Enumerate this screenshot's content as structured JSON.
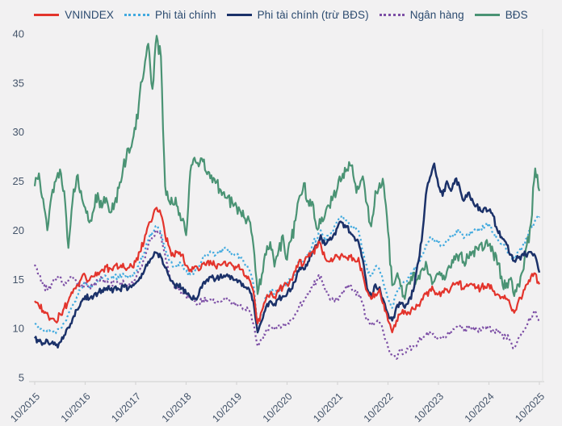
{
  "chart_data": {
    "type": "line",
    "title": "",
    "xlabel": "",
    "ylabel": "",
    "ylim": [
      5,
      40
    ],
    "yticks": [
      40,
      35,
      30,
      25,
      20,
      15,
      10,
      5
    ],
    "xticks": [
      "10/2015",
      "10/2016",
      "10/2017",
      "10/2018",
      "10/2019",
      "10/2020",
      "10/2021",
      "10/2022",
      "10/2023",
      "10/2024",
      "10/2025"
    ],
    "grid": false,
    "legend_position": "top",
    "x": {
      "start": "2015-10",
      "step": "1 month",
      "count": 121
    },
    "series": [
      {
        "name": "VNINDEX",
        "slug": "vnindex",
        "color": "#e3342c",
        "style": "solid",
        "values": [
          12.8,
          12.3,
          11.8,
          11.6,
          11.0,
          10.7,
          11.5,
          12.1,
          12.8,
          13.6,
          14.4,
          15.0,
          15.4,
          14.9,
          15.3,
          15.7,
          16.0,
          16.3,
          16.1,
          16.4,
          16.2,
          16.6,
          16.1,
          16.4,
          16.8,
          17.8,
          18.8,
          20.5,
          21.2,
          22.3,
          21.6,
          19.5,
          18.3,
          17.4,
          17.8,
          17.5,
          16.4,
          16.0,
          16.3,
          15.9,
          16.6,
          16.8,
          16.6,
          16.3,
          16.5,
          16.8,
          16.6,
          16.4,
          16.2,
          16.0,
          15.3,
          15.0,
          13.8,
          10.5,
          11.8,
          13.0,
          13.5,
          13.2,
          13.8,
          14.2,
          14.5,
          15.0,
          15.8,
          17.0,
          16.6,
          17.3,
          17.8,
          18.2,
          18.6,
          17.2,
          16.8,
          17.0,
          17.3,
          17.6,
          17.2,
          17.3,
          17.0,
          17.2,
          15.5,
          13.8,
          13.0,
          13.5,
          14.0,
          12.5,
          10.8,
          9.6,
          10.8,
          11.5,
          11.8,
          11.6,
          12.0,
          12.3,
          13.0,
          13.5,
          14.0,
          13.8,
          13.5,
          13.8,
          14.0,
          14.2,
          14.5,
          14.8,
          14.0,
          14.3,
          14.5,
          14.2,
          14.0,
          14.3,
          14.5,
          13.8,
          13.5,
          13.2,
          13.0,
          12.5,
          11.6,
          12.8,
          13.4,
          14.5,
          15.3,
          15.6,
          14.5
        ]
      },
      {
        "name": "Phi tài chính",
        "slug": "phi-tai-chinh",
        "color": "#41aadf",
        "style": "dotted",
        "values": [
          10.5,
          10.2,
          9.9,
          9.8,
          9.6,
          9.5,
          9.9,
          10.6,
          11.4,
          12.3,
          13.2,
          14.0,
          14.6,
          14.2,
          14.5,
          14.8,
          15.1,
          15.3,
          15.1,
          15.4,
          15.2,
          15.6,
          15.1,
          15.4,
          15.8,
          16.8,
          17.6,
          19.0,
          19.8,
          20.5,
          19.8,
          18.0,
          16.9,
          16.2,
          16.6,
          16.4,
          15.8,
          15.5,
          15.8,
          16.2,
          17.2,
          17.6,
          17.8,
          17.5,
          17.8,
          18.1,
          17.9,
          17.7,
          17.5,
          17.2,
          16.5,
          16.0,
          14.5,
          10.4,
          11.8,
          13.2,
          13.8,
          13.5,
          14.0,
          14.3,
          14.5,
          15.0,
          15.8,
          17.0,
          16.8,
          17.5,
          18.5,
          19.2,
          20.0,
          19.0,
          19.5,
          20.0,
          20.8,
          21.5,
          21.0,
          20.5,
          20.2,
          20.0,
          17.8,
          16.1,
          15.3,
          16.3,
          16.0,
          14.5,
          13.0,
          12.1,
          13.5,
          14.4,
          14.8,
          15.2,
          15.8,
          16.5,
          17.4,
          18.5,
          19.3,
          19.0,
          18.8,
          18.5,
          19.0,
          19.3,
          19.6,
          20.0,
          19.2,
          19.5,
          19.8,
          20.2,
          20.0,
          20.4,
          20.7,
          19.8,
          19.2,
          18.6,
          18.2,
          17.5,
          17.1,
          17.8,
          18.4,
          19.2,
          20.2,
          21.0,
          21.4
        ]
      },
      {
        "name": "Phi tài chính (trừ BĐS)",
        "slug": "phi-tai-chinh-tru-bds",
        "color": "#1b3169",
        "style": "solid",
        "values": [
          9.0,
          8.7,
          8.5,
          8.8,
          8.5,
          8.3,
          8.6,
          9.3,
          10.1,
          11.0,
          11.9,
          12.7,
          13.3,
          13.0,
          13.3,
          13.6,
          13.9,
          14.1,
          13.9,
          14.2,
          14.0,
          14.4,
          13.9,
          14.2,
          14.6,
          15.2,
          15.8,
          16.8,
          17.2,
          17.7,
          17.3,
          16.2,
          15.3,
          14.6,
          14.4,
          14.1,
          13.6,
          13.2,
          13.0,
          13.4,
          14.6,
          15.0,
          15.2,
          15.0,
          15.2,
          15.4,
          15.3,
          15.2,
          15.0,
          14.7,
          14.2,
          14.0,
          12.8,
          9.6,
          10.8,
          12.2,
          12.8,
          12.5,
          13.0,
          13.3,
          13.5,
          14.0,
          14.8,
          16.2,
          16.0,
          16.8,
          17.8,
          18.5,
          19.5,
          18.5,
          19.0,
          19.5,
          20.3,
          20.8,
          20.3,
          19.8,
          19.3,
          18.8,
          17.0,
          14.1,
          13.3,
          14.5,
          14.2,
          12.8,
          11.5,
          10.8,
          12.2,
          12.5,
          12.1,
          13.0,
          13.8,
          16.5,
          18.9,
          23.6,
          25.4,
          26.8,
          24.5,
          23.5,
          25.0,
          24.0,
          25.2,
          24.5,
          23.0,
          23.8,
          23.2,
          22.5,
          22.0,
          22.3,
          22.0,
          21.5,
          20.0,
          19.3,
          18.8,
          17.5,
          16.9,
          17.2,
          17.6,
          17.3,
          17.8,
          17.4,
          15.7
        ]
      },
      {
        "name": "Ngân hàng",
        "slug": "ngan-hang",
        "color": "#7d4fa6",
        "style": "dotted",
        "values": [
          16.5,
          15.6,
          14.4,
          14.0,
          14.5,
          15.0,
          15.3,
          14.4,
          14.9,
          15.3,
          14.6,
          14.3,
          14.6,
          14.1,
          14.4,
          14.8,
          15.1,
          14.7,
          14.4,
          14.8,
          14.5,
          14.9,
          14.3,
          14.6,
          15.0,
          16.0,
          17.0,
          18.5,
          19.3,
          20.0,
          19.4,
          17.5,
          15.5,
          14.5,
          14.0,
          13.8,
          13.3,
          13.0,
          12.8,
          12.6,
          13.0,
          12.8,
          12.9,
          12.6,
          12.8,
          13.0,
          12.8,
          12.7,
          12.6,
          12.4,
          12.0,
          11.8,
          10.5,
          8.2,
          9.0,
          9.8,
          10.2,
          10.0,
          10.3,
          10.4,
          10.5,
          10.8,
          11.5,
          12.5,
          12.8,
          13.5,
          14.2,
          14.8,
          15.4,
          14.0,
          13.2,
          12.8,
          13.0,
          13.5,
          14.2,
          14.4,
          13.8,
          13.5,
          12.5,
          10.8,
          10.4,
          10.6,
          10.6,
          9.5,
          8.1,
          7.3,
          6.9,
          7.8,
          7.5,
          8.0,
          8.2,
          8.5,
          9.0,
          9.3,
          9.6,
          9.2,
          8.9,
          9.0,
          9.3,
          9.6,
          10.0,
          10.3,
          9.8,
          10.0,
          10.2,
          9.9,
          9.7,
          10.0,
          10.1,
          9.8,
          9.6,
          9.4,
          9.2,
          8.8,
          8.0,
          9.0,
          9.5,
          10.2,
          11.2,
          11.8,
          10.6
        ]
      },
      {
        "name": "BĐS",
        "slug": "bds",
        "color": "#4a9374",
        "style": "solid",
        "values": [
          24.5,
          25.8,
          23.2,
          20.0,
          23.5,
          25.0,
          26.2,
          24.0,
          18.2,
          23.0,
          25.5,
          24.0,
          22.3,
          20.8,
          22.0,
          23.8,
          22.3,
          23.3,
          21.8,
          22.8,
          24.3,
          26.3,
          28.3,
          28.5,
          30.3,
          34.0,
          36.2,
          39.0,
          34.4,
          39.8,
          37.7,
          24.5,
          22.9,
          22.6,
          22.4,
          21.0,
          19.5,
          26.0,
          27.4,
          26.5,
          27.0,
          25.7,
          25.6,
          24.8,
          24.2,
          23.9,
          23.5,
          22.8,
          22.4,
          21.8,
          21.2,
          21.0,
          18.5,
          13.5,
          15.5,
          17.5,
          18.8,
          16.3,
          18.0,
          19.5,
          17.0,
          19.0,
          21.0,
          23.5,
          24.8,
          23.0,
          22.9,
          20.2,
          20.7,
          21.5,
          22.5,
          23.5,
          24.3,
          25.2,
          26.0,
          26.6,
          25.0,
          24.2,
          25.5,
          22.7,
          20.4,
          24.0,
          24.8,
          24.6,
          19.9,
          14.4,
          15.3,
          14.3,
          13.0,
          14.7,
          15.7,
          15.0,
          16.0,
          16.8,
          15.5,
          14.8,
          15.5,
          15.0,
          15.8,
          16.2,
          17.0,
          17.5,
          16.8,
          17.2,
          17.8,
          18.3,
          18.6,
          18.3,
          18.5,
          17.8,
          16.5,
          15.3,
          14.1,
          15.0,
          13.3,
          14.5,
          15.8,
          18.5,
          20.7,
          26.3,
          24.0
        ]
      }
    ],
    "colors": {
      "background": "#f2f1f2",
      "axis": "#d6d6d6",
      "tick_text": "#44546a",
      "legend_text": "#2b4a6f"
    }
  }
}
